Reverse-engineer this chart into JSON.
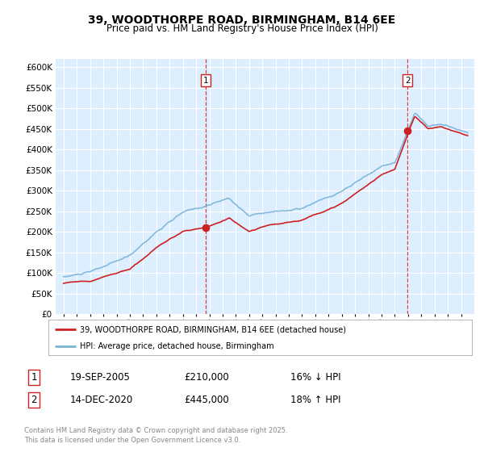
{
  "title": "39, WOODTHORPE ROAD, BIRMINGHAM, B14 6EE",
  "subtitle": "Price paid vs. HM Land Registry's House Price Index (HPI)",
  "background_color": "#ddeeff",
  "hpi_color": "#7ab4d8",
  "price_color": "#cc2222",
  "ylim": [
    0,
    620000
  ],
  "yticks": [
    0,
    50000,
    100000,
    150000,
    200000,
    250000,
    300000,
    350000,
    400000,
    450000,
    500000,
    550000,
    600000
  ],
  "sale1_date": 2005.72,
  "sale1_price": 210000,
  "sale1_label": "1",
  "sale2_date": 2020.96,
  "sale2_price": 445000,
  "sale2_label": "2",
  "legend_line1": "39, WOODTHORPE ROAD, BIRMINGHAM, B14 6EE (detached house)",
  "legend_line2": "HPI: Average price, detached house, Birmingham",
  "table_row1_num": "1",
  "table_row1_date": "19-SEP-2005",
  "table_row1_price": "£210,000",
  "table_row1_hpi": "16% ↓ HPI",
  "table_row2_num": "2",
  "table_row2_date": "14-DEC-2020",
  "table_row2_price": "£445,000",
  "table_row2_hpi": "18% ↑ HPI",
  "footer": "Contains HM Land Registry data © Crown copyright and database right 2025.\nThis data is licensed under the Open Government Licence v3.0."
}
